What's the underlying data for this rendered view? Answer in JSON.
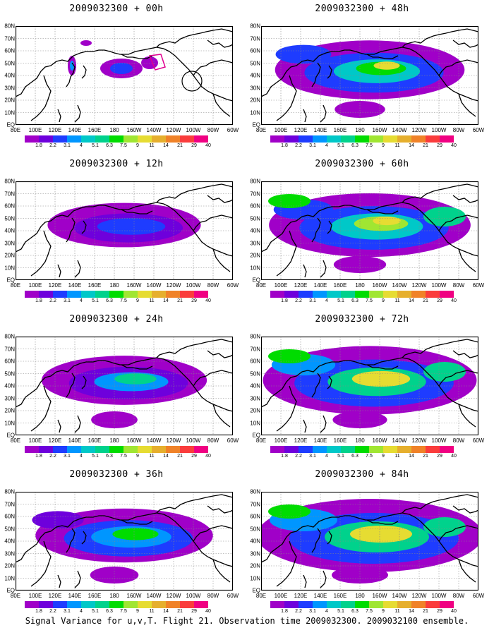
{
  "panels": [
    {
      "title": "2009032300 + 00h",
      "col": 0,
      "row": 0,
      "intensity": 0
    },
    {
      "title": "2009032300 + 12h",
      "col": 0,
      "row": 1,
      "intensity": 1
    },
    {
      "title": "2009032300 + 24h",
      "col": 0,
      "row": 2,
      "intensity": 2
    },
    {
      "title": "2009032300 + 36h",
      "col": 0,
      "row": 3,
      "intensity": 3
    },
    {
      "title": "2009032300 + 48h",
      "col": 1,
      "row": 0,
      "intensity": 4
    },
    {
      "title": "2009032300 + 60h",
      "col": 1,
      "row": 1,
      "intensity": 5
    },
    {
      "title": "2009032300 + 72h",
      "col": 1,
      "row": 2,
      "intensity": 6
    },
    {
      "title": "2009032300 + 84h",
      "col": 1,
      "row": 3,
      "intensity": 7
    }
  ],
  "map": {
    "lat_labels": [
      "80N",
      "70N",
      "60N",
      "50N",
      "40N",
      "30N",
      "20N",
      "10N",
      "EQ"
    ],
    "lon_labels": [
      "80E",
      "100E",
      "120E",
      "140E",
      "160E",
      "180",
      "160W",
      "140W",
      "120W",
      "100W",
      "80W",
      "60W"
    ]
  },
  "colorbar": {
    "labels": [
      "1.8",
      "2.2",
      "3.1",
      "4",
      "5.1",
      "6.3",
      "7.5",
      "9",
      "11",
      "14",
      "21",
      "29",
      "40"
    ],
    "colors": [
      "#a000c8",
      "#6e00dc",
      "#1e3cff",
      "#0096ff",
      "#00c8c8",
      "#00d28c",
      "#00dc00",
      "#a0e632",
      "#e6dc32",
      "#e6af2d",
      "#f08228",
      "#fa3c3c",
      "#f00082"
    ]
  },
  "footer": "Signal Variance for u,v,T. Flight 21. Observation time 2009032300. 2009032100 ensemble."
}
